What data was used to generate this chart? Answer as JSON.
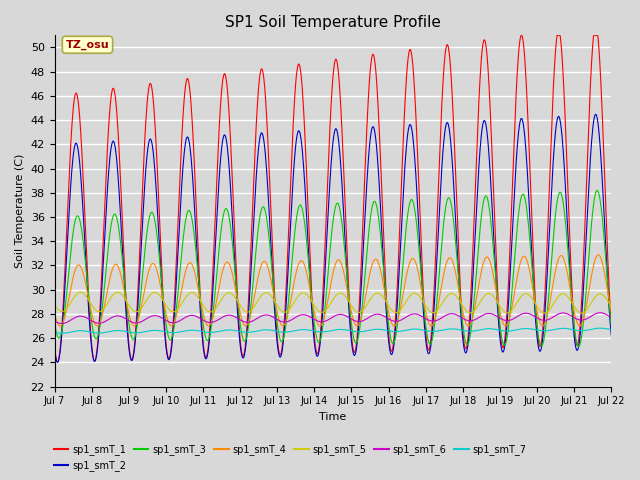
{
  "title": "SP1 Soil Temperature Profile",
  "xlabel": "Time",
  "ylabel": "Soil Temperature (C)",
  "ylim": [
    22,
    51
  ],
  "yticks": [
    22,
    24,
    26,
    28,
    30,
    32,
    34,
    36,
    38,
    40,
    42,
    44,
    46,
    48,
    50
  ],
  "series_colors": {
    "sp1_smT_1": "#ff0000",
    "sp1_smT_2": "#0000cc",
    "sp1_smT_3": "#00cc00",
    "sp1_smT_4": "#ff8800",
    "sp1_smT_5": "#cccc00",
    "sp1_smT_6": "#cc00cc",
    "sp1_smT_7": "#00cccc"
  },
  "series_labels": [
    "sp1_smT_1",
    "sp1_smT_2",
    "sp1_smT_3",
    "sp1_smT_4",
    "sp1_smT_5",
    "sp1_smT_6",
    "sp1_smT_7"
  ],
  "xtick_labels": [
    "Jul 7",
    "Jul 8",
    "Jul 9",
    "Jul 10",
    "Jul 11",
    "Jul 12",
    "Jul 13",
    "Jul 14",
    "Jul 15",
    "Jul 16",
    "Jul 17",
    "Jul 18",
    "Jul 19",
    "Jul 20",
    "Jul 21",
    "Jul 22"
  ],
  "background_color": "#d8d8d8",
  "plot_bg_color": "#d8d8d8",
  "annotation_text": "TZ_osu",
  "annotation_color": "#990000",
  "annotation_bg": "#ffffcc",
  "grid_color": "#ffffff",
  "n_points": 1440
}
